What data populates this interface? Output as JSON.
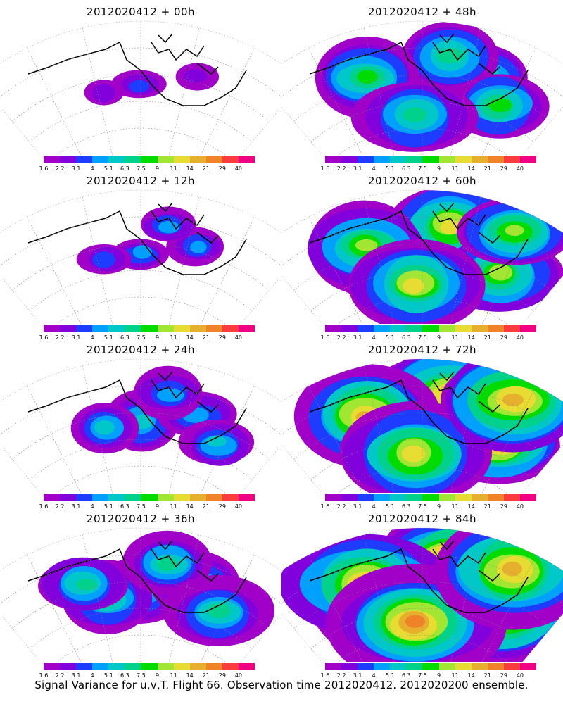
{
  "panels": [
    {
      "title": "2012020412 + 00h",
      "intensity": 0
    },
    {
      "title": "2012020412 + 48h",
      "intensity": 4
    },
    {
      "title": "2012020412 + 12h",
      "intensity": 1
    },
    {
      "title": "2012020412 + 60h",
      "intensity": 5
    },
    {
      "title": "2012020412 + 24h",
      "intensity": 2
    },
    {
      "title": "2012020412 + 72h",
      "intensity": 6
    },
    {
      "title": "2012020412 + 36h",
      "intensity": 3
    },
    {
      "title": "2012020412 + 84h",
      "intensity": 7
    }
  ],
  "colorbar": {
    "labels": [
      "1.6",
      "2.2",
      "3.1",
      "4",
      "5.1",
      "6.3",
      "7.5",
      "9",
      "11",
      "14",
      "21",
      "29",
      "40"
    ],
    "colors": [
      "#a000c8",
      "#8200dc",
      "#1e3cff",
      "#00a0ff",
      "#00c8c8",
      "#00d28c",
      "#00dc00",
      "#a0e632",
      "#e6dc32",
      "#e6af2d",
      "#f08228",
      "#fa3c3c",
      "#f00082"
    ]
  },
  "caption": "Signal Variance for u,v,T. Flight 66. Observation time 2012020412. 2012020200 ensemble."
}
